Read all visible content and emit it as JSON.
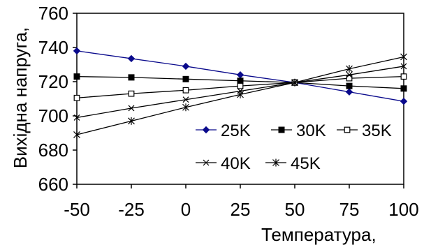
{
  "chart_data": {
    "type": "line",
    "xlabel": "Температура,",
    "ylabel": "Вихідна напруга,",
    "x": [
      -50,
      -25,
      0,
      25,
      50,
      75,
      100
    ],
    "xticks": [
      "-50",
      "-25",
      "0",
      "25",
      "50",
      "75",
      "100"
    ],
    "yticks": [
      "660",
      "680",
      "700",
      "720",
      "740",
      "760"
    ],
    "xlim": [
      -50,
      100
    ],
    "ylim": [
      660,
      760
    ],
    "grid": false,
    "legend_position": "inside-right",
    "series": [
      {
        "name": "25K",
        "marker": "diamond",
        "color": "#0a0a8c",
        "values": [
          738,
          733.5,
          729,
          724,
          719.5,
          714,
          708.5
        ]
      },
      {
        "name": "30K",
        "marker": "square",
        "color": "#000000",
        "values": [
          723,
          722.5,
          721.5,
          720.5,
          719.5,
          717.5,
          716
        ]
      },
      {
        "name": "35K",
        "marker": "open-square",
        "color": "#000000",
        "values": [
          710.5,
          713,
          715,
          717.5,
          719.5,
          722,
          723
        ]
      },
      {
        "name": "40K",
        "marker": "x",
        "color": "#000000",
        "values": [
          699,
          704.5,
          709.5,
          714.5,
          719.5,
          724,
          729
        ]
      },
      {
        "name": "45K",
        "marker": "star",
        "color": "#000000",
        "values": [
          689,
          697,
          705,
          712.5,
          719.5,
          727.5,
          734.5
        ]
      }
    ]
  }
}
